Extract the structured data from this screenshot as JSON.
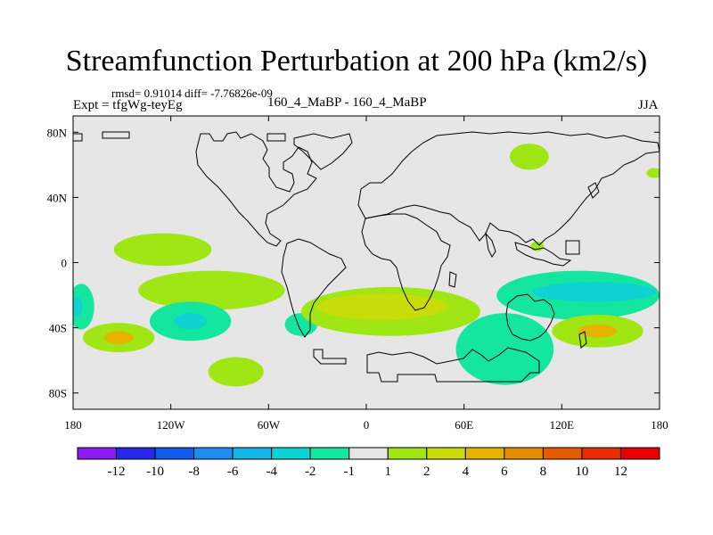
{
  "chart_data": {
    "type": "heatmap",
    "title": "Streamfunction Perturbation at 200 hPa (km2/s)",
    "subtitle": "rmsd= 0.91014 diff= -7.76826e-09",
    "left_label": "Expt = tfgWg-teyEg",
    "center_label": "160_4_MaBP - 160_4_MaBP",
    "right_label": "JJA",
    "x_ticks": [
      "180",
      "120W",
      "60W",
      "0",
      "60E",
      "120E",
      "180"
    ],
    "y_ticks": [
      "80N",
      "40N",
      "0",
      "40S",
      "80S"
    ],
    "x_range_lon": [
      -180,
      180
    ],
    "y_range_lat": [
      -90,
      90
    ],
    "colorbar": {
      "labels": [
        "-12",
        "-10",
        "-8",
        "-6",
        "-4",
        "-2",
        "-1",
        "1",
        "2",
        "4",
        "6",
        "8",
        "10",
        "12"
      ],
      "colors": [
        "#8c1bf0",
        "#2828e6",
        "#0f5ae6",
        "#1e8cf0",
        "#14b4e6",
        "#0fd2d2",
        "#14e6a0",
        "#e6e6e6",
        "#a0e614",
        "#c8dc0a",
        "#e6b400",
        "#e68c00",
        "#e65a00",
        "#e62d00",
        "#e60000"
      ]
    },
    "regions": [
      {
        "level": "1 to 2",
        "lon": -125,
        "lat": 8,
        "rx": 30,
        "ry": 10
      },
      {
        "level": "1 to 2",
        "lon": -95,
        "lat": -17,
        "rx": 45,
        "ry": 12
      },
      {
        "level": "1 to 2",
        "lon": -152,
        "lat": -46,
        "rx": 22,
        "ry": 9
      },
      {
        "level": "4 to 6",
        "lon": -152,
        "lat": -46,
        "rx": 9,
        "ry": 4
      },
      {
        "level": "-2 to -1",
        "lon": -108,
        "lat": -36,
        "rx": 25,
        "ry": 12
      },
      {
        "level": "-4 to -2",
        "lon": -108,
        "lat": -36,
        "rx": 10,
        "ry": 5
      },
      {
        "level": "1 to 2",
        "lon": -80,
        "lat": -67,
        "rx": 17,
        "ry": 9
      },
      {
        "level": "-2 to -1",
        "lon": -40,
        "lat": -38,
        "rx": 10,
        "ry": 7
      },
      {
        "level": "1 to 2",
        "lon": 15,
        "lat": -30,
        "rx": 55,
        "ry": 15
      },
      {
        "level": "2 to 4",
        "lon": 10,
        "lat": -27,
        "rx": 40,
        "ry": 8
      },
      {
        "level": "1 to 2",
        "lon": 100,
        "lat": 65,
        "rx": 12,
        "ry": 8
      },
      {
        "level": "1 to 2",
        "lon": 105,
        "lat": 10,
        "rx": 4,
        "ry": 3
      },
      {
        "level": "1 to 2",
        "lon": 177,
        "lat": 55,
        "rx": 5,
        "ry": 3
      },
      {
        "level": "-2 to -1",
        "lon": 130,
        "lat": -20,
        "rx": 50,
        "ry": 15
      },
      {
        "level": "-4 to -2",
        "lon": 140,
        "lat": -18,
        "rx": 38,
        "ry": 6
      },
      {
        "level": "-2 to -1",
        "lon": 85,
        "lat": -53,
        "rx": 30,
        "ry": 22
      },
      {
        "level": "1 to 2",
        "lon": 142,
        "lat": -42,
        "rx": 28,
        "ry": 10
      },
      {
        "level": "4 to 6",
        "lon": 142,
        "lat": -42,
        "rx": 12,
        "ry": 4
      },
      {
        "level": "-2 to -1",
        "lon": -175,
        "lat": -27,
        "rx": 8,
        "ry": 14
      },
      {
        "level": "-4 to -2",
        "lon": -178,
        "lat": -27,
        "rx": 4,
        "ry": 6
      }
    ]
  }
}
